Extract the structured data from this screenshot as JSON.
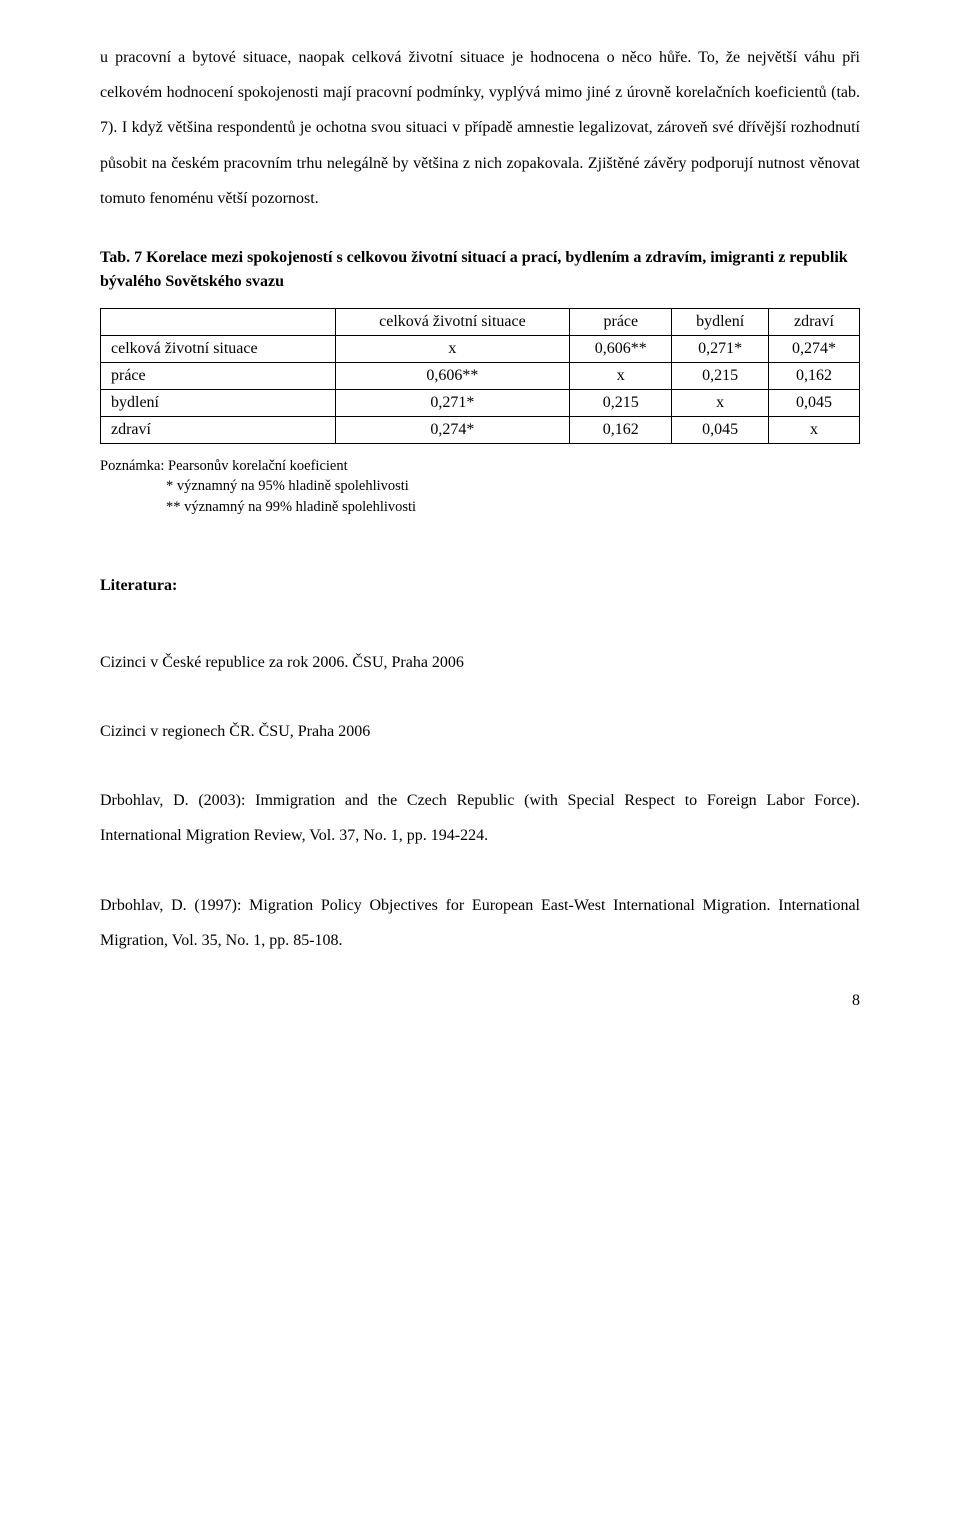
{
  "paragraph": "u pracovní a bytové situace, naopak celková životní situace je hodnocena o něco hůře. To, že největší váhu při celkovém hodnocení spokojenosti mají pracovní podmínky, vyplývá mimo jiné z úrovně korelačních koeficientů (tab. 7). I když většina respondentů je ochotna svou situaci v případě amnestie legalizovat, zároveň své dřívější rozhodnutí působit na českém pracovním trhu nelegálně by většina z nich zopakovala. Zjištěné závěry podporují nutnost věnovat tomuto fenoménu větší pozornost.",
  "table": {
    "title": "Tab. 7 Korelace mezi spokojeností s celkovou životní situací a prací, bydlením a zdravím,  imigranti z republik bývalého Sovětského svazu",
    "corner": "",
    "headers": [
      "celková životní situace",
      "práce",
      "bydlení",
      "zdraví"
    ],
    "rows": [
      {
        "label": "celková životní situace",
        "cells": [
          "x",
          "0,606**",
          "0,271*",
          "0,274*"
        ]
      },
      {
        "label": "práce",
        "cells": [
          "0,606**",
          "x",
          "0,215",
          "0,162"
        ]
      },
      {
        "label": "bydlení",
        "cells": [
          "0,271*",
          "0,215",
          "x",
          "0,045"
        ]
      },
      {
        "label": "zdraví",
        "cells": [
          "0,274*",
          "0,162",
          "0,045",
          "x"
        ]
      }
    ],
    "note_lead": "Poznámka: Pearsonův korelační koeficient",
    "note_line2": "* významný na 95% hladině spolehlivosti",
    "note_line3": "** významný na 99% hladině spolehlivosti"
  },
  "literature_heading": "Literatura:",
  "references": [
    "Cizinci v České republice za rok 2006. ČSU, Praha 2006",
    "Cizinci v regionech ČR. ČSU, Praha 2006",
    "Drbohlav, D. (2003): Immigration and the Czech Republic (with Special Respect to Foreign Labor Force). International Migration Review, Vol. 37, No. 1, pp. 194-224.",
    "Drbohlav, D. (1997): Migration Policy Objectives for European East-West International Migration. International Migration, Vol. 35, No. 1, pp. 85-108."
  ],
  "page_number": "8"
}
